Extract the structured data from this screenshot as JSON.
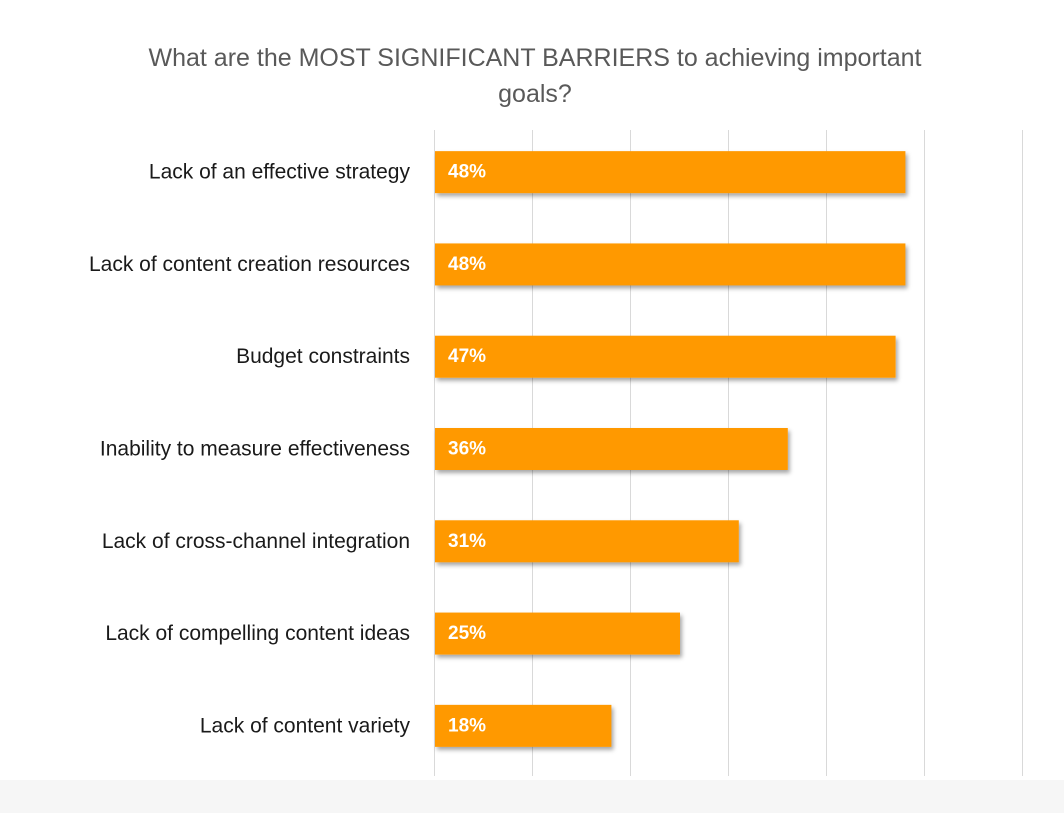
{
  "chart_data": {
    "type": "bar",
    "orientation": "horizontal",
    "title_lines": [
      "What are the MOST SIGNIFICANT  BARRIERS to achieving important",
      "goals?"
    ],
    "categories": [
      "Lack of an effective strategy",
      "Lack of content creation resources",
      "Budget constraints",
      "Inability to measure effectiveness",
      "Lack of cross-channel integration",
      "Lack of compelling content ideas",
      "Lack of content variety"
    ],
    "values": [
      48,
      48,
      47,
      36,
      31,
      25,
      18
    ],
    "data_labels": [
      "48%",
      "48%",
      "47%",
      "36%",
      "31%",
      "25%",
      "18%"
    ],
    "xlim": [
      0,
      60
    ],
    "grid": true,
    "legend": "none",
    "bar_color": "#ff9900",
    "label_color": "#ffffff",
    "category_color": "#1a1a1a",
    "title_color": "#595959",
    "grid_color": "#d9d9d9"
  }
}
